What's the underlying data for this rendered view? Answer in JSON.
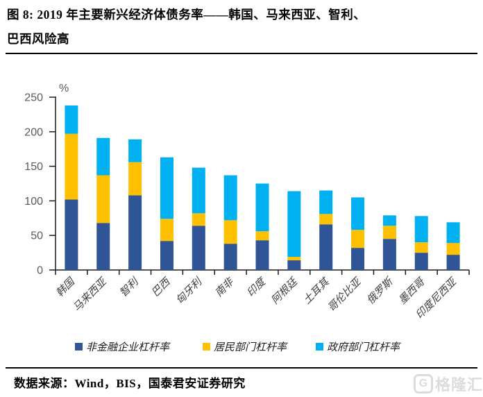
{
  "header": {
    "title_lines": [
      "图 8: 2019 年主要新兴经济体债务率——韩国、马来西亚、智利、",
      "巴西风险高"
    ]
  },
  "chart_data": {
    "type": "bar",
    "stacked": true,
    "title": "2019 年主要新兴经济体债务率",
    "unit_label": "%",
    "xlabel": "",
    "ylabel": "%",
    "ylim": [
      0,
      250
    ],
    "ytick_step": 50,
    "grid": false,
    "legend_position": "bottom",
    "categories": [
      "韩国",
      "马来西亚",
      "智利",
      "巴西",
      "匈牙利",
      "南非",
      "印度",
      "阿根廷",
      "土耳其",
      "哥伦比亚",
      "俄罗斯",
      "墨西哥",
      "印度尼西亚"
    ],
    "series": [
      {
        "name": "非金融企业杠杆率",
        "color": "#2F5597",
        "values": [
          102,
          68,
          108,
          42,
          64,
          38,
          43,
          14,
          66,
          32,
          45,
          25,
          22
        ]
      },
      {
        "name": "居民部门杠杆率",
        "color": "#FFC000",
        "values": [
          95,
          69,
          48,
          32,
          18,
          34,
          13,
          5,
          15,
          26,
          19,
          15,
          17
        ]
      },
      {
        "name": "政府部门杠杆率",
        "color": "#00B0F0",
        "values": [
          41,
          54,
          33,
          89,
          66,
          65,
          69,
          95,
          34,
          47,
          15,
          38,
          30
        ]
      }
    ],
    "totals": [
      238,
      191,
      189,
      163,
      148,
      137,
      125,
      114,
      115,
      105,
      79,
      78,
      69
    ]
  },
  "footer": {
    "source": "数据来源：Wind，BIS，国泰君安证券研究"
  },
  "watermark": {
    "logo_letter": "G",
    "text": "格隆汇"
  },
  "style_colors": {
    "corporate": "#2F5597",
    "household": "#FFC000",
    "government": "#00B0F0",
    "axis": "#1a1a1a",
    "tick_text": "#595959"
  }
}
